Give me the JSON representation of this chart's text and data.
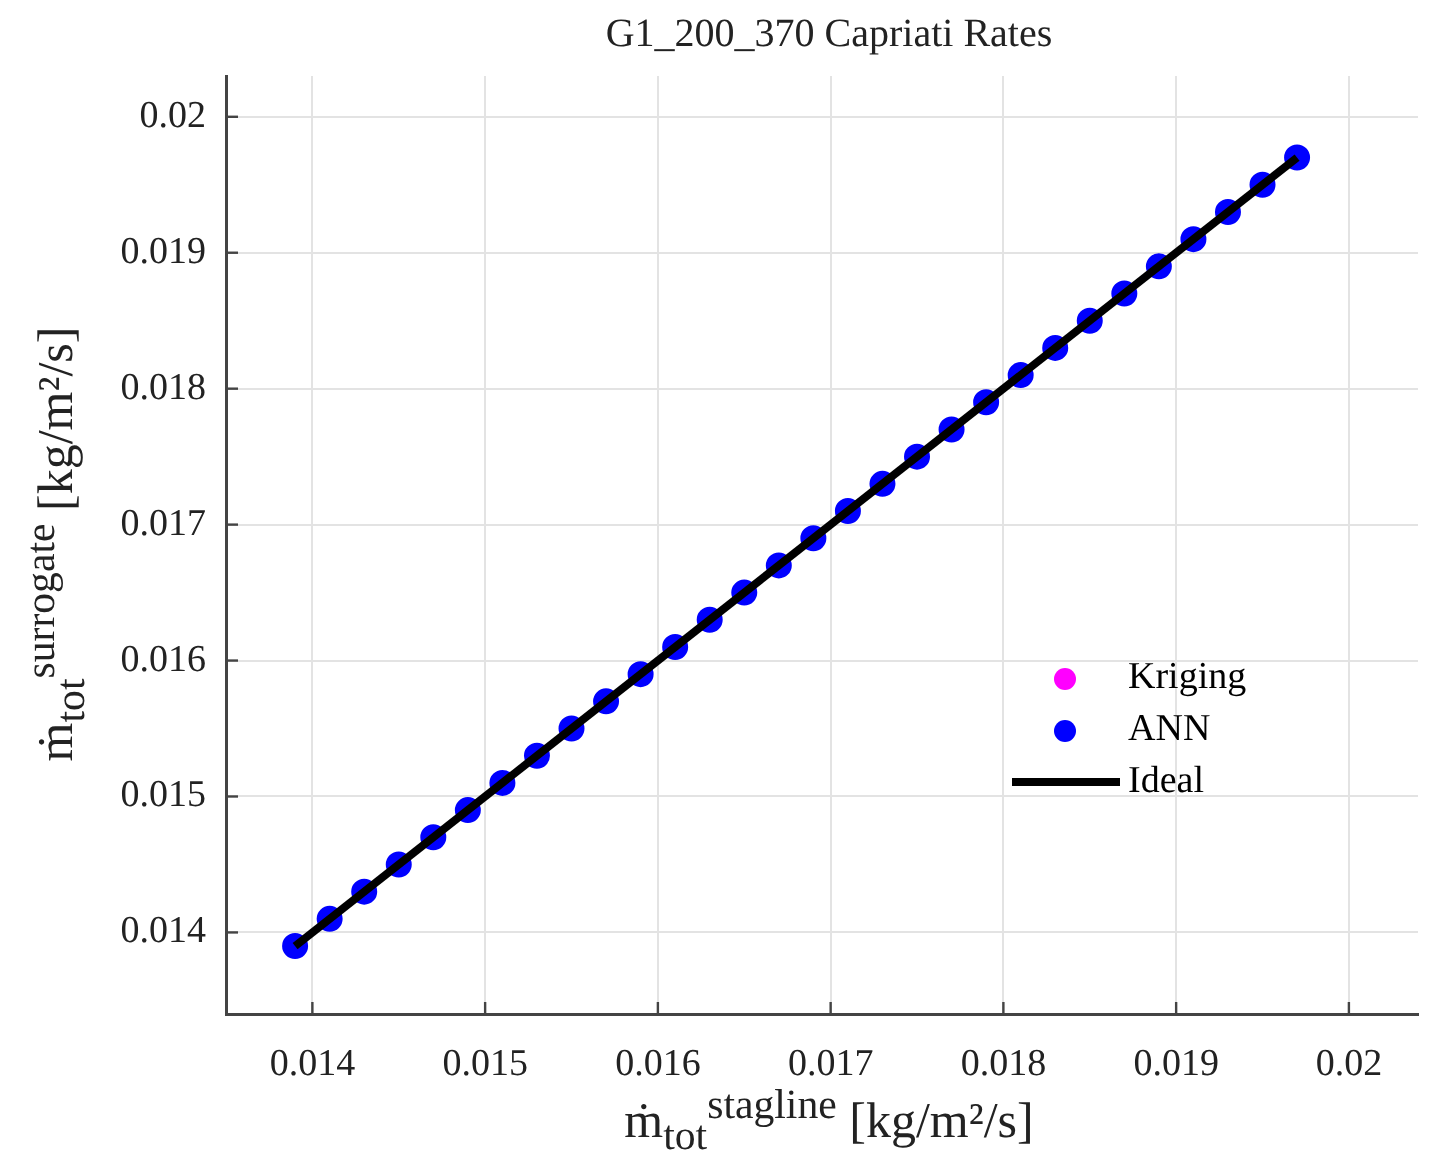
{
  "chart_data": {
    "type": "scatter",
    "title": "G1_200_370 Capriati Rates",
    "xlabel": "ṁ$_{tot}$$^{stagline}$ [kg/m²/s]",
    "ylabel": "ṁ$_{tot}$$^{surrogate}$ [kg/m²/s]",
    "xlim": [
      0.0135,
      0.0204
    ],
    "ylim": [
      0.0134,
      0.0203
    ],
    "xticks": [
      0.014,
      0.015,
      0.016,
      0.017,
      0.018,
      0.019,
      0.02
    ],
    "yticks": [
      0.014,
      0.015,
      0.016,
      0.017,
      0.018,
      0.019,
      0.02
    ],
    "grid": true,
    "legend": "right",
    "series": [
      {
        "name": "Kriging",
        "color": "#ff00ff",
        "marker": "circle"
      },
      {
        "name": "ANN",
        "color": "#0000ff",
        "marker": "circle",
        "x": [
          0.0139,
          0.0141,
          0.0143,
          0.0145,
          0.0147,
          0.0149,
          0.0151,
          0.0153,
          0.0155,
          0.0157,
          0.0159,
          0.0161,
          0.0163,
          0.0165,
          0.0167,
          0.0169,
          0.0171,
          0.0173,
          0.0175,
          0.0177,
          0.0179,
          0.0181,
          0.0183,
          0.0185,
          0.0187,
          0.0189,
          0.0191,
          0.0193,
          0.0195,
          0.0197
        ],
        "values": [
          0.0139,
          0.0141,
          0.0143,
          0.0145,
          0.0147,
          0.0149,
          0.0151,
          0.0153,
          0.0155,
          0.0157,
          0.0159,
          0.0161,
          0.0163,
          0.0165,
          0.0167,
          0.0169,
          0.0171,
          0.0173,
          0.0175,
          0.0177,
          0.0179,
          0.0181,
          0.0183,
          0.0185,
          0.0187,
          0.0189,
          0.0191,
          0.0193,
          0.0195,
          0.0197
        ]
      },
      {
        "name": "Ideal",
        "type": "line",
        "color": "#000000",
        "marker": "none",
        "x": [
          0.0139,
          0.0197
        ],
        "values": [
          0.0139,
          0.0197
        ]
      }
    ]
  }
}
